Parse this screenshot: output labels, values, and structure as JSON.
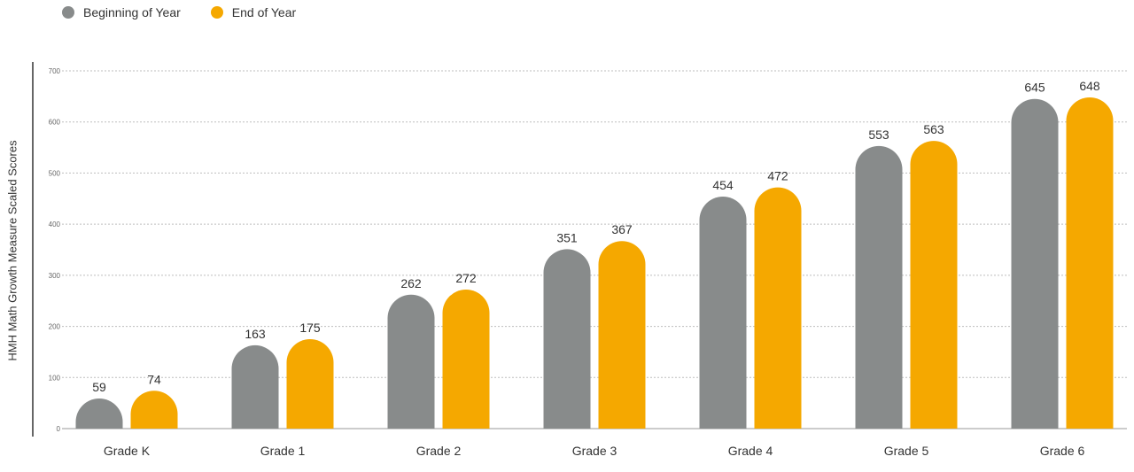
{
  "chart_data": {
    "type": "bar",
    "categories": [
      "Grade K",
      "Grade 1",
      "Grade 2",
      "Grade 3",
      "Grade 4",
      "Grade 5",
      "Grade 6"
    ],
    "series": [
      {
        "name": "Beginning of Year",
        "color": "#888b8b",
        "values": [
          59,
          163,
          262,
          351,
          454,
          553,
          645
        ]
      },
      {
        "name": "End of Year",
        "color": "#f5a800",
        "values": [
          74,
          175,
          272,
          367,
          472,
          563,
          648
        ]
      }
    ],
    "ylabel": "HMH Math Growth Measure Scaled Scores",
    "ylim": [
      0,
      700
    ],
    "yticks": [
      0,
      100,
      200,
      300,
      400,
      500,
      600,
      700
    ],
    "grid": true,
    "legend": "top-left"
  }
}
